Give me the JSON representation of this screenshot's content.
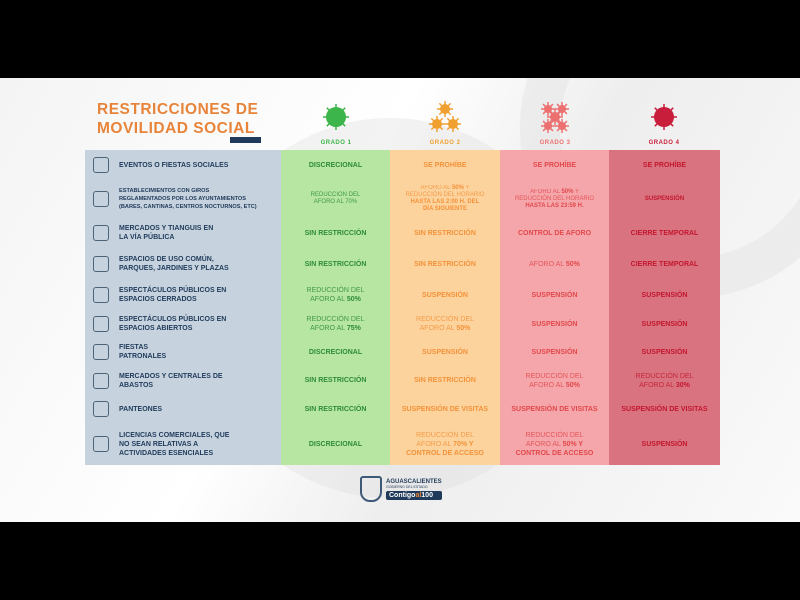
{
  "title": "RESTRICCIONES DE\nMOVILIDAD SOCIAL",
  "grades": [
    {
      "label": "GRADO 1",
      "color": "#3cb54a"
    },
    {
      "label": "GRADO 2",
      "color": "#f0a030"
    },
    {
      "label": "GRADO 3",
      "color": "#ec7070"
    },
    {
      "label": "GRADO 4",
      "color": "#c81e3c"
    }
  ],
  "rows": [
    {
      "icon": "balloons-icon",
      "label": "EVENTOS O FIESTAS SOCIALES",
      "small": false,
      "height": 30,
      "cells": [
        [
          {
            "t": "DISCRECIONAL",
            "b": true
          }
        ],
        [
          {
            "t": "SE PROHÍBE",
            "b": true
          }
        ],
        [
          {
            "t": "SE PROHÍBE",
            "b": true
          }
        ],
        [
          {
            "t": "SE PROHÍBE",
            "b": true
          }
        ]
      ]
    },
    {
      "icon": "bar-bucket-icon",
      "label": "ESTABLECIMIENTOS CON GIROS\nREGLAMENTADOS POR LOS AYUNTAMIENTOS\n(BARES, CANTINAS, CENTROS NOCTURNOS, ETC)",
      "small": true,
      "height": 38,
      "cells": [
        [
          {
            "t": "REDUCCIÓN DEL\nAFORO AL 70%",
            "b": false
          }
        ],
        [
          {
            "t": "AFORO AL ",
            "b": false
          },
          {
            "t": "50%",
            "b": true
          },
          {
            "t": " Y\nREDUCCIÓN DEL HORARIO\n",
            "b": false
          },
          {
            "t": "HASTA LAS 2:00 H. DEL\nDÍA SIGUIENTE",
            "b": true
          }
        ],
        [
          {
            "t": "AFORO AL ",
            "b": false
          },
          {
            "t": "50%",
            "b": true
          },
          {
            "t": " Y\nREDUCCIÓN DEL HORARIO\n",
            "b": false
          },
          {
            "t": "HASTA LAS 23:59 H.",
            "b": true
          }
        ],
        [
          {
            "t": "SUSPENSIÓN",
            "b": true
          }
        ]
      ]
    },
    {
      "icon": "market-stall-icon",
      "label": "MERCADOS Y TIANGUIS EN\nLA VÍA PÚBLICA",
      "small": false,
      "height": 30,
      "cells": [
        [
          {
            "t": "SIN RESTRICCIÓN",
            "b": true
          }
        ],
        [
          {
            "t": "SIN RESTRICCIÓN",
            "b": true
          }
        ],
        [
          {
            "t": "CONTROL DE AFORO",
            "b": true
          }
        ],
        [
          {
            "t": "CIERRE TEMPORAL",
            "b": true
          }
        ]
      ]
    },
    {
      "icon": "park-icon",
      "label": "ESPACIOS DE USO COMÚN,\nPARQUES, JARDINES Y PLAZAS",
      "small": false,
      "height": 32,
      "cells": [
        [
          {
            "t": "SIN RESTRICCIÓN",
            "b": true
          }
        ],
        [
          {
            "t": "SIN RESTRICCIÓN",
            "b": true
          }
        ],
        [
          {
            "t": "AFORO AL ",
            "b": false
          },
          {
            "t": "50%",
            "b": true
          }
        ],
        [
          {
            "t": "CIERRE TEMPORAL",
            "b": true
          }
        ]
      ]
    },
    {
      "icon": "theater-curtain-icon",
      "label": "ESPECTÁCULOS PÚBLICOS EN\nESPACIOS CERRADOS",
      "small": false,
      "height": 30,
      "cells": [
        [
          {
            "t": "REDUCCIÓN DEL\nAFORO AL ",
            "b": false
          },
          {
            "t": "50%",
            "b": true
          }
        ],
        [
          {
            "t": "SUSPENSIÓN",
            "b": true
          }
        ],
        [
          {
            "t": "SUSPENSIÓN",
            "b": true
          }
        ],
        [
          {
            "t": "SUSPENSIÓN",
            "b": true
          }
        ]
      ]
    },
    {
      "icon": "speakers-icon",
      "label": "ESPECTÁCULOS PÚBLICOS EN\nESPACIOS ABIERTOS",
      "small": false,
      "height": 28,
      "cells": [
        [
          {
            "t": "REDUCCIÓN DEL\nAFORO AL ",
            "b": false
          },
          {
            "t": "75%",
            "b": true
          }
        ],
        [
          {
            "t": "REDUCCIÓN DEL\nAFORO AL ",
            "b": false
          },
          {
            "t": "50%",
            "b": true
          }
        ],
        [
          {
            "t": "SUSPENSIÓN",
            "b": true
          }
        ],
        [
          {
            "t": "SUSPENSIÓN",
            "b": true
          }
        ]
      ]
    },
    {
      "icon": "church-icon",
      "label": "FIESTAS\nPATRONALES",
      "small": false,
      "height": 28,
      "cells": [
        [
          {
            "t": "DISCRECIONAL",
            "b": true
          }
        ],
        [
          {
            "t": "SUSPENSIÓN",
            "b": true
          }
        ],
        [
          {
            "t": "SUSPENSIÓN",
            "b": true
          }
        ],
        [
          {
            "t": "SUSPENSIÓN",
            "b": true
          }
        ]
      ]
    },
    {
      "icon": "shopping-bag-icon",
      "label": "MERCADOS Y  CENTRALES DE\nABASTOS",
      "small": false,
      "height": 29,
      "cells": [
        [
          {
            "t": "SIN RESTRICCIÓN",
            "b": true
          }
        ],
        [
          {
            "t": "SIN RESTRICCIÓN",
            "b": true
          }
        ],
        [
          {
            "t": "REDUCCIÓN DEL\nAFORO AL ",
            "b": false
          },
          {
            "t": "50%",
            "b": true
          }
        ],
        [
          {
            "t": "REDUCCIÓN DEL\nAFORO AL ",
            "b": false
          },
          {
            "t": "30%",
            "b": true
          }
        ]
      ]
    },
    {
      "icon": "cemetery-icon",
      "label": "PANTEONES",
      "small": false,
      "height": 28,
      "cells": [
        [
          {
            "t": "SIN RESTRICCIÓN",
            "b": true
          }
        ],
        [
          {
            "t": "SUSPENSIÓN DE VISITAS",
            "b": true
          }
        ],
        [
          {
            "t": "SUSPENSIÓN DE VISITAS",
            "b": true
          }
        ],
        [
          {
            "t": "SUSPENSIÓN DE VISITAS",
            "b": true
          }
        ]
      ]
    },
    {
      "icon": "dumbbell-icon",
      "label": "LICENCIAS COMERCIALES, QUE\nNO SEAN RELATIVAS A\nACTIVIDADES ESENCIALES",
      "small": false,
      "height": 42,
      "cells": [
        [
          {
            "t": "DISCRECIONAL",
            "b": true
          }
        ],
        [
          {
            "t": "REDUCCIÓN DEL\nAFORO AL ",
            "b": false
          },
          {
            "t": "70% Y\nCONTROL DE ACCESO",
            "b": true
          }
        ],
        [
          {
            "t": "REDUCCIÓN DEL\nAFORO AL ",
            "b": false
          },
          {
            "t": "50% Y\nCONTROL DE ACCESO",
            "b": true
          }
        ],
        [
          {
            "t": "SUSPENSIÓN",
            "b": true
          }
        ]
      ]
    }
  ],
  "logo": {
    "name": "AGUASCALIENTES",
    "subtitle": "GOBIERNO DEL ESTADO",
    "slogan_a": "Contigo",
    "slogan_b": "al",
    "slogan_c": "100"
  }
}
